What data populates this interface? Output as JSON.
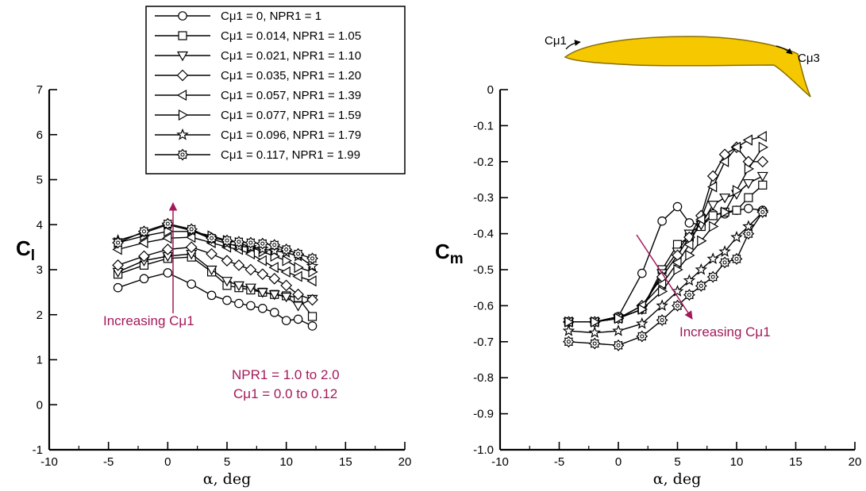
{
  "colors": {
    "annotation": "#A3195B",
    "airfoil_fill": "#F5C800",
    "airfoil_stroke": "#8A6E00",
    "axis": "#000000"
  },
  "legend": {
    "placement": "top-center of left panel"
  },
  "chart_data": [
    {
      "type": "line",
      "id": "cl",
      "ylabel_main": "C",
      "ylabel_sub": "l",
      "xlabel": "α, deg",
      "xlim": [
        -10,
        20
      ],
      "ylim": [
        -1,
        7
      ],
      "x_ticks": [
        "-10",
        "-5",
        "0",
        "5",
        "10",
        "15",
        "20"
      ],
      "y_ticks": [
        "-1",
        "0",
        "1",
        "2",
        "3",
        "4",
        "5",
        "6",
        "7"
      ],
      "grid": false,
      "annotations": {
        "increasing": "Increasing Cμ1",
        "range_line1": "NPR1 = 1.0 to 2.0",
        "range_line2": "Cμ1 = 0.0 to 0.12"
      },
      "x": [
        -4.2,
        -2,
        0,
        2,
        3.7,
        5,
        6,
        7,
        8,
        9,
        10,
        11,
        12.2
      ],
      "series": [
        {
          "name": "Cμ1 = 0, NPR1 = 1",
          "marker": "circle",
          "values": [
            2.6,
            2.8,
            2.93,
            2.68,
            2.43,
            2.32,
            2.25,
            2.2,
            2.14,
            2.05,
            1.87,
            1.9,
            1.75
          ]
        },
        {
          "name": "Cμ1 = 0.014, NPR1 = 1.05",
          "marker": "square",
          "values": [
            2.9,
            3.1,
            3.25,
            3.28,
            2.95,
            2.65,
            2.6,
            2.55,
            2.5,
            2.45,
            2.42,
            2.38,
            1.96
          ]
        },
        {
          "name": "Cμ1 = 0.021, NPR1 = 1.10",
          "marker": "triangle-down",
          "values": [
            2.95,
            3.2,
            3.3,
            3.35,
            3.0,
            2.75,
            2.65,
            2.6,
            2.5,
            2.45,
            2.4,
            2.2,
            2.35
          ]
        },
        {
          "name": "Cμ1 = 0.035, NPR1 = 1.20",
          "marker": "diamond",
          "values": [
            3.1,
            3.3,
            3.45,
            3.5,
            3.35,
            3.2,
            3.1,
            3.0,
            2.9,
            2.8,
            2.65,
            2.45,
            2.33
          ]
        },
        {
          "name": "Cμ1 = 0.057, NPR1 = 1.39",
          "marker": "triangle-left",
          "values": [
            3.45,
            3.6,
            3.7,
            3.72,
            3.6,
            3.5,
            3.45,
            3.35,
            3.2,
            3.05,
            2.95,
            2.85,
            2.75
          ]
        },
        {
          "name": "Cμ1 = 0.077, NPR1 = 1.59",
          "marker": "triangle-right",
          "values": [
            3.6,
            3.75,
            3.85,
            3.85,
            3.75,
            3.65,
            3.6,
            3.5,
            3.4,
            3.3,
            3.2,
            3.05,
            2.95
          ]
        },
        {
          "name": "Cμ1 = 0.096, NPR1 = 1.79",
          "marker": "star",
          "values": [
            3.65,
            3.82,
            4.0,
            3.87,
            3.68,
            3.58,
            3.52,
            3.5,
            3.46,
            3.42,
            3.38,
            3.3,
            3.08
          ]
        },
        {
          "name": "Cμ1 = 0.117, NPR1 = 1.99",
          "marker": "gear",
          "values": [
            3.6,
            3.85,
            4.02,
            3.9,
            3.7,
            3.65,
            3.62,
            3.6,
            3.58,
            3.55,
            3.45,
            3.35,
            3.25
          ]
        }
      ]
    },
    {
      "type": "line",
      "id": "cm",
      "ylabel_main": "C",
      "ylabel_sub": "m",
      "xlabel": "α, deg",
      "xlim": [
        -10,
        20
      ],
      "ylim": [
        -1.0,
        0
      ],
      "x_ticks": [
        "-10",
        "-5",
        "0",
        "5",
        "10",
        "15",
        "20"
      ],
      "y_ticks": [
        "-1.0",
        "-0.9",
        "-0.8",
        "-0.7",
        "-0.6",
        "-0.5",
        "-0.4",
        "-0.3",
        "-0.2",
        "-0.1",
        "0"
      ],
      "grid": false,
      "annotations": {
        "increasing": "Increasing Cμ1",
        "airfoil_left": "Cμ1",
        "airfoil_right": "Cμ3"
      },
      "x": [
        -4.2,
        -2,
        0,
        2,
        3.7,
        5,
        6,
        7,
        8,
        9,
        10,
        11,
        12.2
      ],
      "series": [
        {
          "name": "Cμ1 = 0, NPR1 = 1",
          "marker": "circle",
          "values": [
            -0.645,
            -0.645,
            -0.63,
            -0.51,
            -0.365,
            -0.325,
            -0.37,
            -0.375,
            -0.345,
            -0.345,
            -0.335,
            -0.33,
            -0.335
          ]
        },
        {
          "name": "Cμ1 = 0.014, NPR1 = 1.05",
          "marker": "square",
          "values": [
            -0.645,
            -0.645,
            -0.635,
            -0.61,
            -0.5,
            -0.43,
            -0.41,
            -0.38,
            -0.35,
            -0.34,
            -0.335,
            -0.3,
            -0.265
          ]
        },
        {
          "name": "Cμ1 = 0.021, NPR1 = 1.10",
          "marker": "triangle-down",
          "values": [
            -0.645,
            -0.645,
            -0.635,
            -0.61,
            -0.51,
            -0.45,
            -0.4,
            -0.375,
            -0.32,
            -0.3,
            -0.29,
            -0.26,
            -0.24
          ]
        },
        {
          "name": "Cμ1 = 0.035, NPR1 = 1.20",
          "marker": "diamond",
          "values": [
            -0.645,
            -0.645,
            -0.635,
            -0.6,
            -0.52,
            -0.46,
            -0.41,
            -0.35,
            -0.24,
            -0.18,
            -0.16,
            -0.2,
            -0.2
          ]
        },
        {
          "name": "Cμ1 = 0.057, NPR1 = 1.39",
          "marker": "triangle-left",
          "values": [
            -0.645,
            -0.645,
            -0.635,
            -0.6,
            -0.54,
            -0.48,
            -0.43,
            -0.36,
            -0.27,
            -0.2,
            -0.16,
            -0.14,
            -0.13
          ]
        },
        {
          "name": "Cμ1 = 0.077, NPR1 = 1.59",
          "marker": "triangle-right",
          "values": [
            -0.645,
            -0.645,
            -0.635,
            -0.61,
            -0.56,
            -0.5,
            -0.46,
            -0.42,
            -0.38,
            -0.34,
            -0.28,
            -0.22,
            -0.16
          ]
        },
        {
          "name": "Cμ1 = 0.096, NPR1 = 1.79",
          "marker": "star",
          "values": [
            -0.67,
            -0.675,
            -0.67,
            -0.65,
            -0.6,
            -0.56,
            -0.53,
            -0.5,
            -0.47,
            -0.45,
            -0.41,
            -0.38,
            -0.34
          ]
        },
        {
          "name": "Cμ1 = 0.117, NPR1 = 1.99",
          "marker": "gear",
          "values": [
            -0.7,
            -0.705,
            -0.71,
            -0.685,
            -0.64,
            -0.6,
            -0.57,
            -0.545,
            -0.52,
            -0.48,
            -0.47,
            -0.4,
            -0.34
          ]
        }
      ]
    }
  ]
}
